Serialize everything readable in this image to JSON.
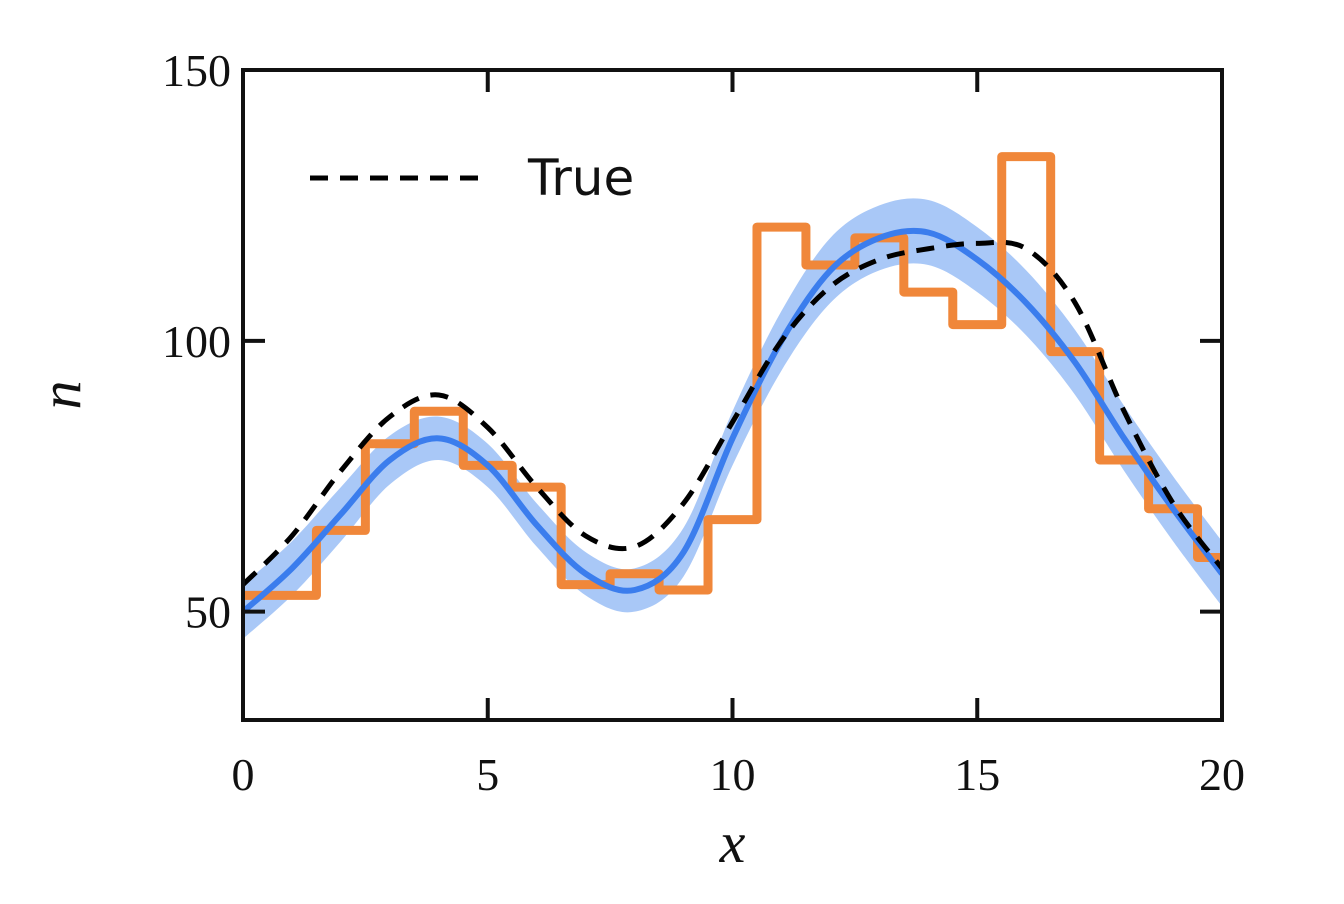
{
  "chart_data": {
    "type": "line",
    "title": "",
    "xlabel": "x",
    "ylabel": "n",
    "xlim": [
      0,
      20
    ],
    "ylim": [
      30,
      150
    ],
    "xticks": [
      0,
      5,
      10,
      15,
      20
    ],
    "yticks": [
      50,
      100,
      150
    ],
    "xtick_labels": [
      "0",
      "5",
      "10",
      "15",
      "20"
    ],
    "ytick_labels": [
      "50",
      "100",
      "150"
    ],
    "grid": false,
    "legend": {
      "position": "top-left",
      "entries": [
        "True"
      ]
    },
    "colors": {
      "true": "#000000",
      "hist": "#F0873A",
      "fit": "#3B7DED",
      "band": "#A9C8F7"
    },
    "series": [
      {
        "name": "True",
        "style": "dashed",
        "x": [
          0,
          1,
          2,
          3,
          4,
          5,
          6,
          7,
          8,
          9,
          10,
          11,
          12,
          13,
          14,
          15,
          16,
          17,
          18,
          19,
          20
        ],
        "values": [
          55,
          64,
          76,
          86,
          90,
          84,
          73,
          64,
          62,
          70,
          85,
          100,
          110,
          115,
          117,
          118,
          117,
          107,
          87,
          70,
          58
        ]
      },
      {
        "type": "step",
        "bin_edges": [
          0,
          1.5,
          2.5,
          3.5,
          4.5,
          5.5,
          6.5,
          7.5,
          8.5,
          9.5,
          10.5,
          11.5,
          12.5,
          13.5,
          14.5,
          15.5,
          16.5,
          17.5,
          18.5,
          19.5,
          20
        ],
        "values": [
          53,
          65,
          81,
          87,
          77,
          73,
          55,
          57,
          54,
          67,
          121,
          114,
          119,
          109,
          103,
          134,
          98,
          78,
          69,
          60
        ]
      },
      {
        "style": "solid",
        "x": [
          0,
          1,
          2,
          3,
          4,
          5,
          6,
          7,
          8,
          9,
          10,
          11,
          12,
          13,
          14,
          15,
          16,
          17,
          18,
          19,
          20
        ],
        "values": [
          50,
          58,
          68,
          78,
          82,
          77,
          66,
          57,
          54,
          61,
          82,
          100,
          113,
          119,
          120,
          115,
          107,
          96,
          82,
          69,
          57
        ],
        "band": [
          5,
          5,
          5,
          4.5,
          4,
          4,
          4,
          4,
          4,
          4.5,
          5,
          5.5,
          6,
          6,
          6,
          6,
          6,
          6,
          6,
          6,
          6
        ]
      }
    ]
  }
}
